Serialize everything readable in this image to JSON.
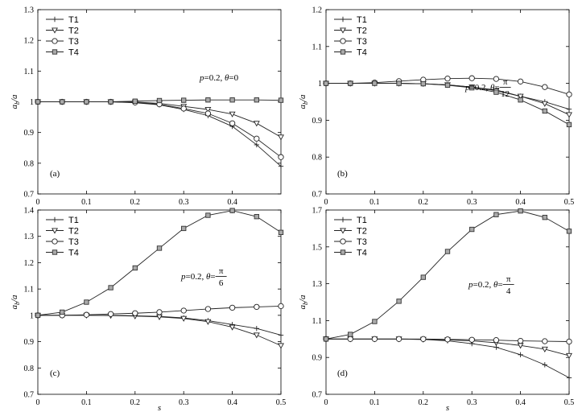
{
  "charts": [
    {
      "type": "line",
      "panel_label": "(a)",
      "ylabel": "a_b/a",
      "xlabel": "",
      "annotation": {
        "p_text": "p",
        "rest_text": "=0.2, ",
        "theta_text": "θ",
        "value_text": "=0",
        "frac": null
      },
      "xlim": [
        0,
        0.5
      ],
      "ylim": [
        0.7,
        1.3
      ],
      "xticks": [
        0,
        0.1,
        0.2,
        0.3,
        0.4
      ],
      "xtick_labels": [
        "0",
        "0.1",
        "0.2",
        "0.3",
        "0.4"
      ],
      "yticks": [
        0.7,
        0.8,
        0.9,
        1.0,
        1.1,
        1.2,
        1.3
      ],
      "ytick_labels": [
        "0.7",
        "0.8",
        "0.9",
        "1",
        "1.1",
        "1.2",
        "1.3"
      ],
      "x": [
        0,
        0.05,
        0.1,
        0.15,
        0.2,
        0.25,
        0.3,
        0.35,
        0.4,
        0.45,
        0.5
      ],
      "series": [
        {
          "name": "T1",
          "marker": "plus",
          "values": [
            1.0,
            1.0,
            1.0,
            1.0,
            0.997,
            0.99,
            0.975,
            0.955,
            0.92,
            0.86,
            0.79
          ]
        },
        {
          "name": "T2",
          "marker": "triangle",
          "values": [
            1.0,
            1.0,
            1.0,
            1.0,
            0.999,
            0.995,
            0.985,
            0.975,
            0.96,
            0.93,
            0.885
          ]
        },
        {
          "name": "T3",
          "marker": "circle",
          "values": [
            1.0,
            1.0,
            1.0,
            1.0,
            0.998,
            0.992,
            0.978,
            0.962,
            0.93,
            0.88,
            0.82
          ]
        },
        {
          "name": "T4",
          "marker": "square",
          "values": [
            1.0,
            1.0,
            1.0,
            1.0,
            1.002,
            1.004,
            1.005,
            1.006,
            1.006,
            1.006,
            1.005
          ]
        }
      ]
    },
    {
      "type": "line",
      "panel_label": "(b)",
      "ylabel": "a_b/a",
      "xlabel": "",
      "annotation": {
        "p_text": "p",
        "rest_text": "=0.2, ",
        "theta_text": "θ",
        "value_text": "=",
        "frac": {
          "num": "π",
          "den": "12"
        }
      },
      "xlim": [
        0,
        0.5
      ],
      "ylim": [
        0.7,
        1.2
      ],
      "xticks": [
        0,
        0.1,
        0.2,
        0.3,
        0.4,
        0.5
      ],
      "xtick_labels": [
        "0",
        "0.1",
        "0.2",
        "0.3",
        "0.4",
        "0.5"
      ],
      "yticks": [
        0.7,
        0.8,
        0.9,
        1.0,
        1.1,
        1.2
      ],
      "ytick_labels": [
        "0.7",
        "0.8",
        "0.9",
        "1",
        "1.1",
        "1.2"
      ],
      "x": [
        0,
        0.05,
        0.1,
        0.15,
        0.2,
        0.25,
        0.3,
        0.35,
        0.4,
        0.45,
        0.5
      ],
      "series": [
        {
          "name": "T1",
          "marker": "plus",
          "values": [
            1.0,
            1.0,
            1.0,
            1.0,
            0.999,
            0.996,
            0.99,
            0.982,
            0.965,
            0.95,
            0.93
          ]
        },
        {
          "name": "T2",
          "marker": "triangle",
          "values": [
            1.0,
            1.0,
            1.0,
            1.0,
            0.999,
            0.996,
            0.99,
            0.98,
            0.965,
            0.945,
            0.915
          ]
        },
        {
          "name": "T3",
          "marker": "circle",
          "values": [
            1.0,
            1.0,
            1.002,
            1.006,
            1.01,
            1.013,
            1.014,
            1.012,
            1.005,
            0.99,
            0.97
          ]
        },
        {
          "name": "T4",
          "marker": "square",
          "values": [
            1.0,
            1.0,
            1.0,
            1.0,
            0.999,
            0.995,
            0.988,
            0.976,
            0.955,
            0.925,
            0.888
          ]
        }
      ]
    },
    {
      "type": "line",
      "panel_label": "(c)",
      "ylabel": "a_b/a",
      "xlabel": "s",
      "annotation": {
        "p_text": "p",
        "rest_text": "=0.2, ",
        "theta_text": "θ",
        "value_text": "=",
        "frac": {
          "num": "π",
          "den": "6"
        }
      },
      "xlim": [
        0,
        0.5
      ],
      "ylim": [
        0.7,
        1.4
      ],
      "xticks": [
        0,
        0.1,
        0.2,
        0.3,
        0.4,
        0.5
      ],
      "xtick_labels": [
        "0",
        "0.1",
        "0.2",
        "0.3",
        "0.4",
        "0.5"
      ],
      "yticks": [
        0.7,
        0.8,
        0.9,
        1.0,
        1.1,
        1.2,
        1.3,
        1.4
      ],
      "ytick_labels": [
        "0.7",
        "0.8",
        "0.9",
        "1",
        "1.1",
        "1.2",
        "1.3",
        "1.4"
      ],
      "x": [
        0,
        0.05,
        0.1,
        0.15,
        0.2,
        0.25,
        0.3,
        0.35,
        0.4,
        0.45,
        0.5
      ],
      "series": [
        {
          "name": "T1",
          "marker": "plus",
          "values": [
            1.0,
            1.0,
            1.0,
            1.0,
            0.998,
            0.996,
            0.99,
            0.98,
            0.965,
            0.95,
            0.925
          ]
        },
        {
          "name": "T2",
          "marker": "triangle",
          "values": [
            1.0,
            1.0,
            1.0,
            0.999,
            0.997,
            0.994,
            0.988,
            0.976,
            0.955,
            0.925,
            0.885
          ]
        },
        {
          "name": "T3",
          "marker": "circle",
          "values": [
            1.0,
            1.0,
            1.002,
            1.005,
            1.008,
            1.012,
            1.018,
            1.024,
            1.029,
            1.032,
            1.035
          ]
        },
        {
          "name": "T4",
          "marker": "square",
          "values": [
            1.0,
            1.012,
            1.05,
            1.105,
            1.18,
            1.255,
            1.33,
            1.38,
            1.398,
            1.375,
            1.315
          ]
        }
      ]
    },
    {
      "type": "line",
      "panel_label": "(d)",
      "ylabel": "a_b/a",
      "xlabel": "s",
      "annotation": {
        "p_text": "p",
        "rest_text": "=0.2, ",
        "theta_text": "θ",
        "value_text": "=",
        "frac": {
          "num": "π",
          "den": "4"
        }
      },
      "xlim": [
        0,
        0.5
      ],
      "ylim": [
        0.7,
        1.7
      ],
      "xticks": [
        0,
        0.1,
        0.2,
        0.3,
        0.4,
        0.5
      ],
      "xtick_labels": [
        "0",
        "0.1",
        "0.2",
        "0.3",
        "0.4",
        "0.5"
      ],
      "yticks": [
        0.7,
        0.9,
        1.1,
        1.3,
        1.5,
        1.7
      ],
      "ytick_labels": [
        "0.7",
        "0.9",
        "1.1",
        "1.3",
        "1.5",
        "1.7"
      ],
      "x": [
        0,
        0.05,
        0.1,
        0.15,
        0.2,
        0.25,
        0.3,
        0.35,
        0.4,
        0.45,
        0.5
      ],
      "series": [
        {
          "name": "T1",
          "marker": "plus",
          "values": [
            1.0,
            1.0,
            1.0,
            1.0,
            0.998,
            0.99,
            0.975,
            0.955,
            0.915,
            0.86,
            0.79
          ]
        },
        {
          "name": "T2",
          "marker": "triangle",
          "values": [
            1.0,
            1.0,
            1.0,
            1.0,
            0.998,
            0.995,
            0.99,
            0.98,
            0.965,
            0.945,
            0.91
          ]
        },
        {
          "name": "T3",
          "marker": "circle",
          "values": [
            1.0,
            1.0,
            1.0,
            1.0,
            1.0,
            0.998,
            0.996,
            0.994,
            0.99,
            0.988,
            0.986
          ]
        },
        {
          "name": "T4",
          "marker": "square",
          "values": [
            1.0,
            1.025,
            1.095,
            1.205,
            1.335,
            1.475,
            1.595,
            1.675,
            1.695,
            1.66,
            1.585
          ]
        }
      ]
    }
  ]
}
